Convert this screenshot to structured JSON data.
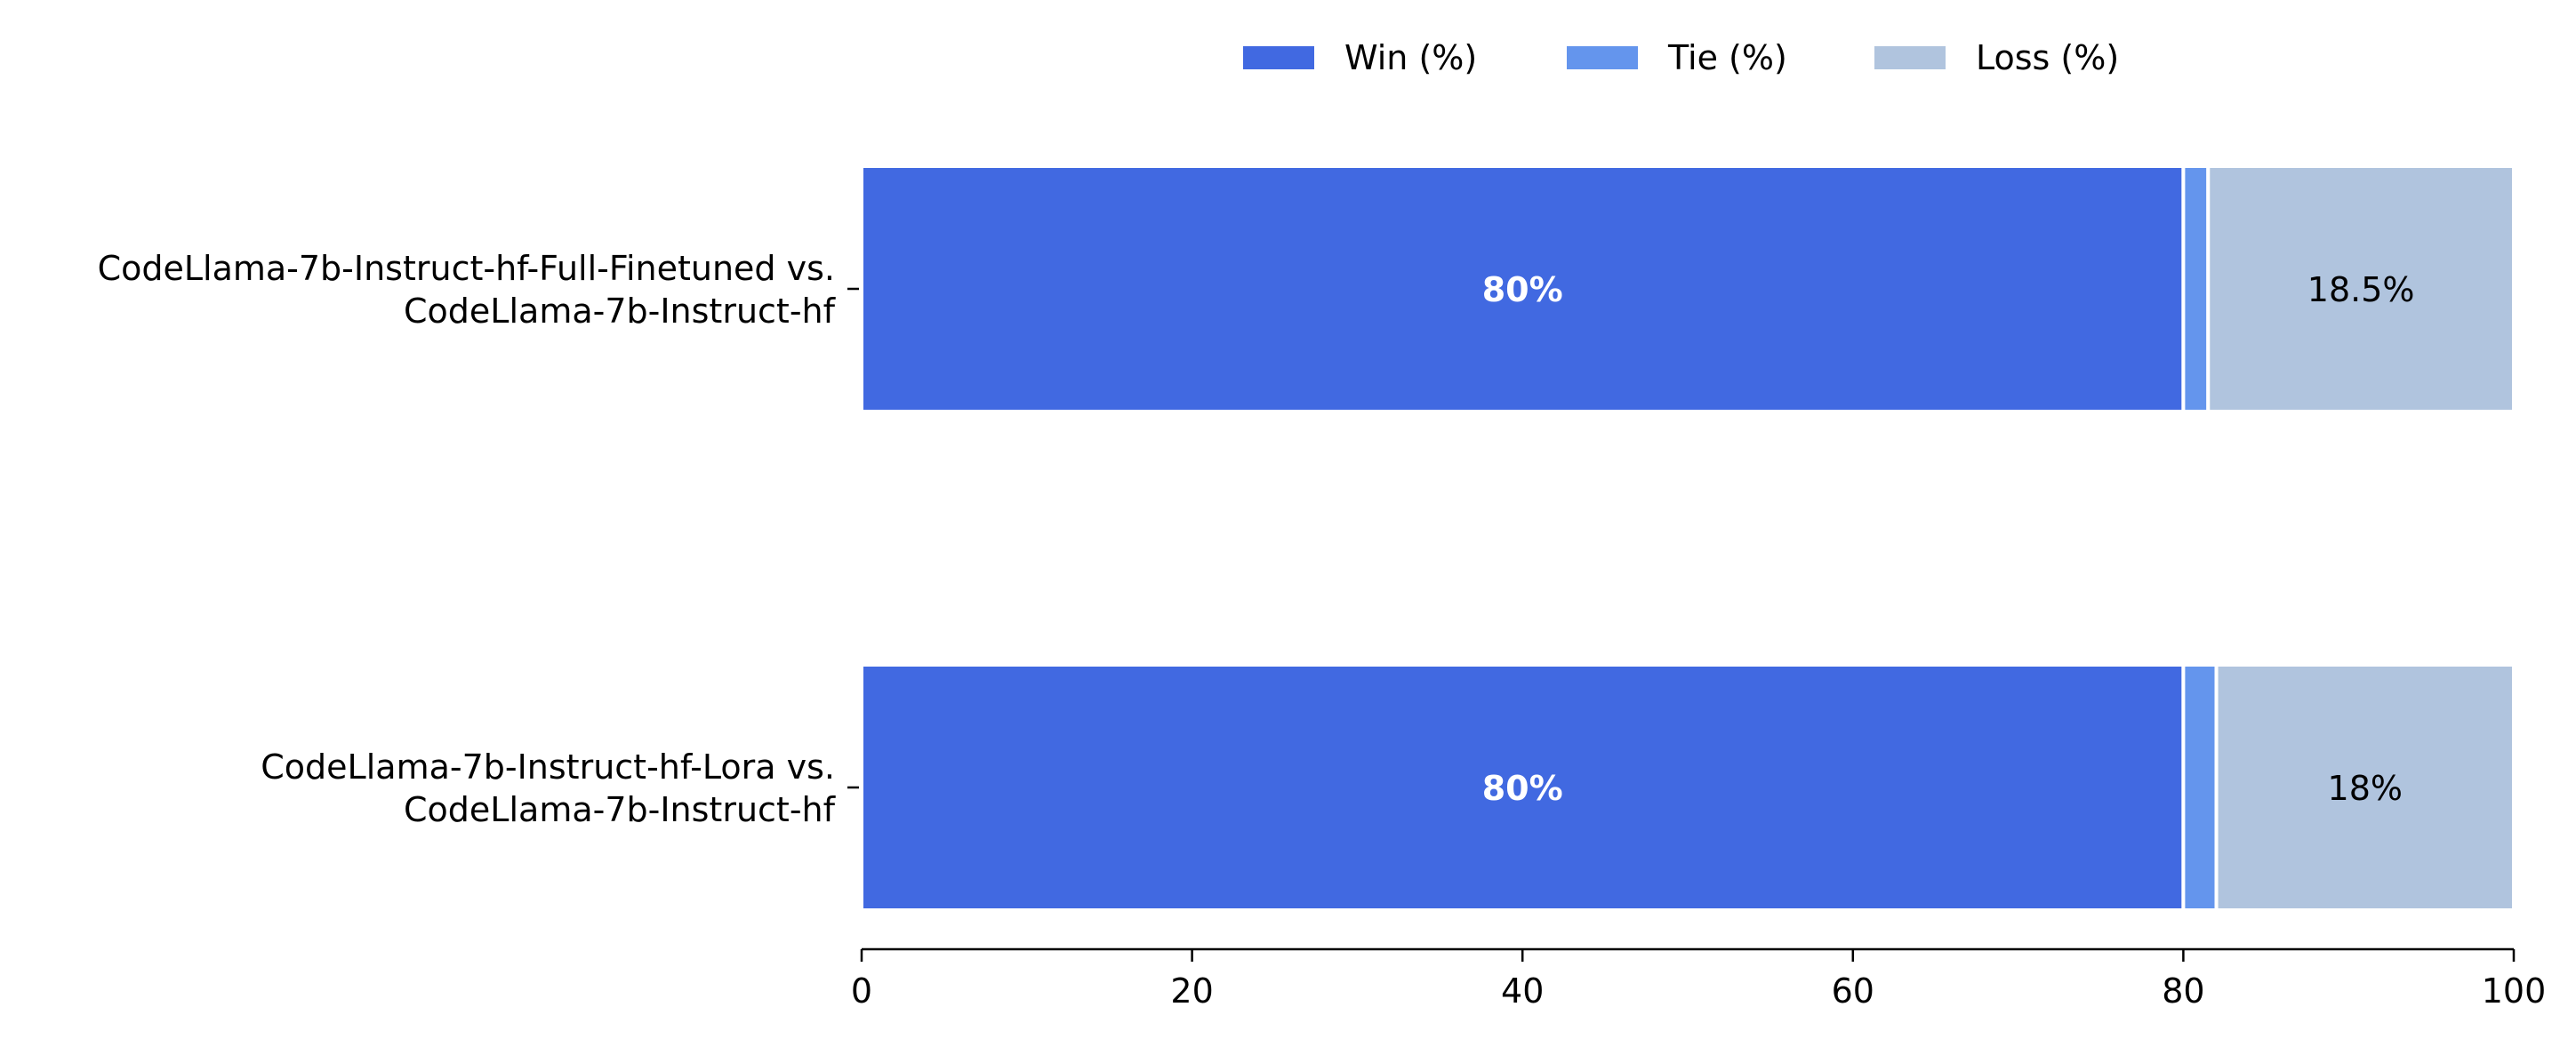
{
  "chart_data": {
    "type": "bar",
    "orientation": "horizontal",
    "stacked": true,
    "categories": [
      [
        "CodeLlama-7b-Instruct-hf-Full-Finetuned vs.",
        "CodeLlama-7b-Instruct-hf"
      ],
      [
        "CodeLlama-7b-Instruct-hf-Lora vs.",
        "CodeLlama-7b-Instruct-hf"
      ]
    ],
    "series": [
      {
        "name": "Win (%)",
        "values": [
          80,
          80
        ],
        "color": "#4169e1",
        "labels": [
          "80%",
          "80%"
        ]
      },
      {
        "name": "Tie (%)",
        "values": [
          1.5,
          2
        ],
        "color": "#6495ed",
        "labels": [
          "",
          ""
        ]
      },
      {
        "name": "Loss (%)",
        "values": [
          18.5,
          18
        ],
        "color": "#b0c4de",
        "labels": [
          "18.5%",
          "18%"
        ]
      }
    ],
    "xlim": [
      0,
      100
    ],
    "xticks": [
      0,
      20,
      40,
      60,
      80,
      100
    ],
    "xlabel": "",
    "ylabel": "",
    "title": "",
    "legend_position": "top-center",
    "grid": false
  }
}
